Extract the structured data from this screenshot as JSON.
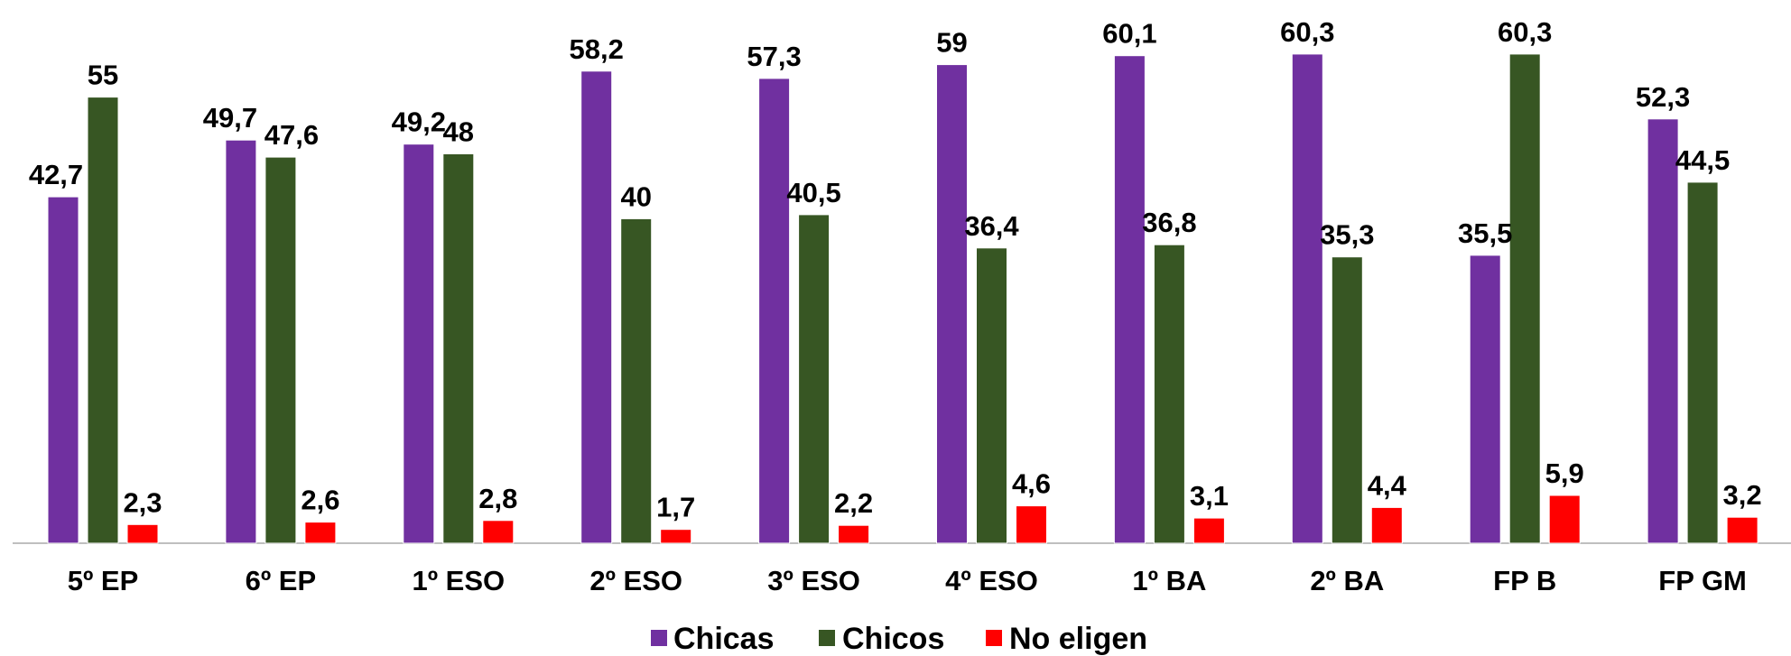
{
  "chart_data": {
    "type": "bar",
    "title": "",
    "xlabel": "",
    "ylabel": "",
    "ylim": [
      0,
      62
    ],
    "grid": false,
    "legend_position": "bottom",
    "categories": [
      "5º EP",
      "6º EP",
      "1º ESO",
      "2º ESO",
      "3º ESO",
      "4º ESO",
      "1º BA",
      "2º BA",
      "FP B",
      "FP GM"
    ],
    "series": [
      {
        "name": "Chicas",
        "color": "#7030A0",
        "values": [
          42.7,
          49.7,
          49.2,
          58.2,
          57.3,
          59,
          60.1,
          60.3,
          35.5,
          52.3
        ],
        "labels": [
          "42,7",
          "49,7",
          "49,2",
          "58,2",
          "57,3",
          "59",
          "60,1",
          "60,3",
          "35,5",
          "52,3"
        ]
      },
      {
        "name": "Chicos",
        "color": "#375623",
        "values": [
          55,
          47.6,
          48,
          40,
          40.5,
          36.4,
          36.8,
          35.3,
          60.3,
          44.5
        ],
        "labels": [
          "55",
          "47,6",
          "48",
          "40",
          "40,5",
          "36,4",
          "36,8",
          "35,3",
          "60,3",
          "44,5"
        ]
      },
      {
        "name": "No eligen",
        "color": "#FF0000",
        "values": [
          2.3,
          2.6,
          2.8,
          1.7,
          2.2,
          4.6,
          3.1,
          4.4,
          5.9,
          3.2
        ],
        "labels": [
          "2,3",
          "2,6",
          "2,8",
          "1,7",
          "2,2",
          "4,6",
          "3,1",
          "4,4",
          "5,9",
          "3,2"
        ]
      }
    ]
  }
}
